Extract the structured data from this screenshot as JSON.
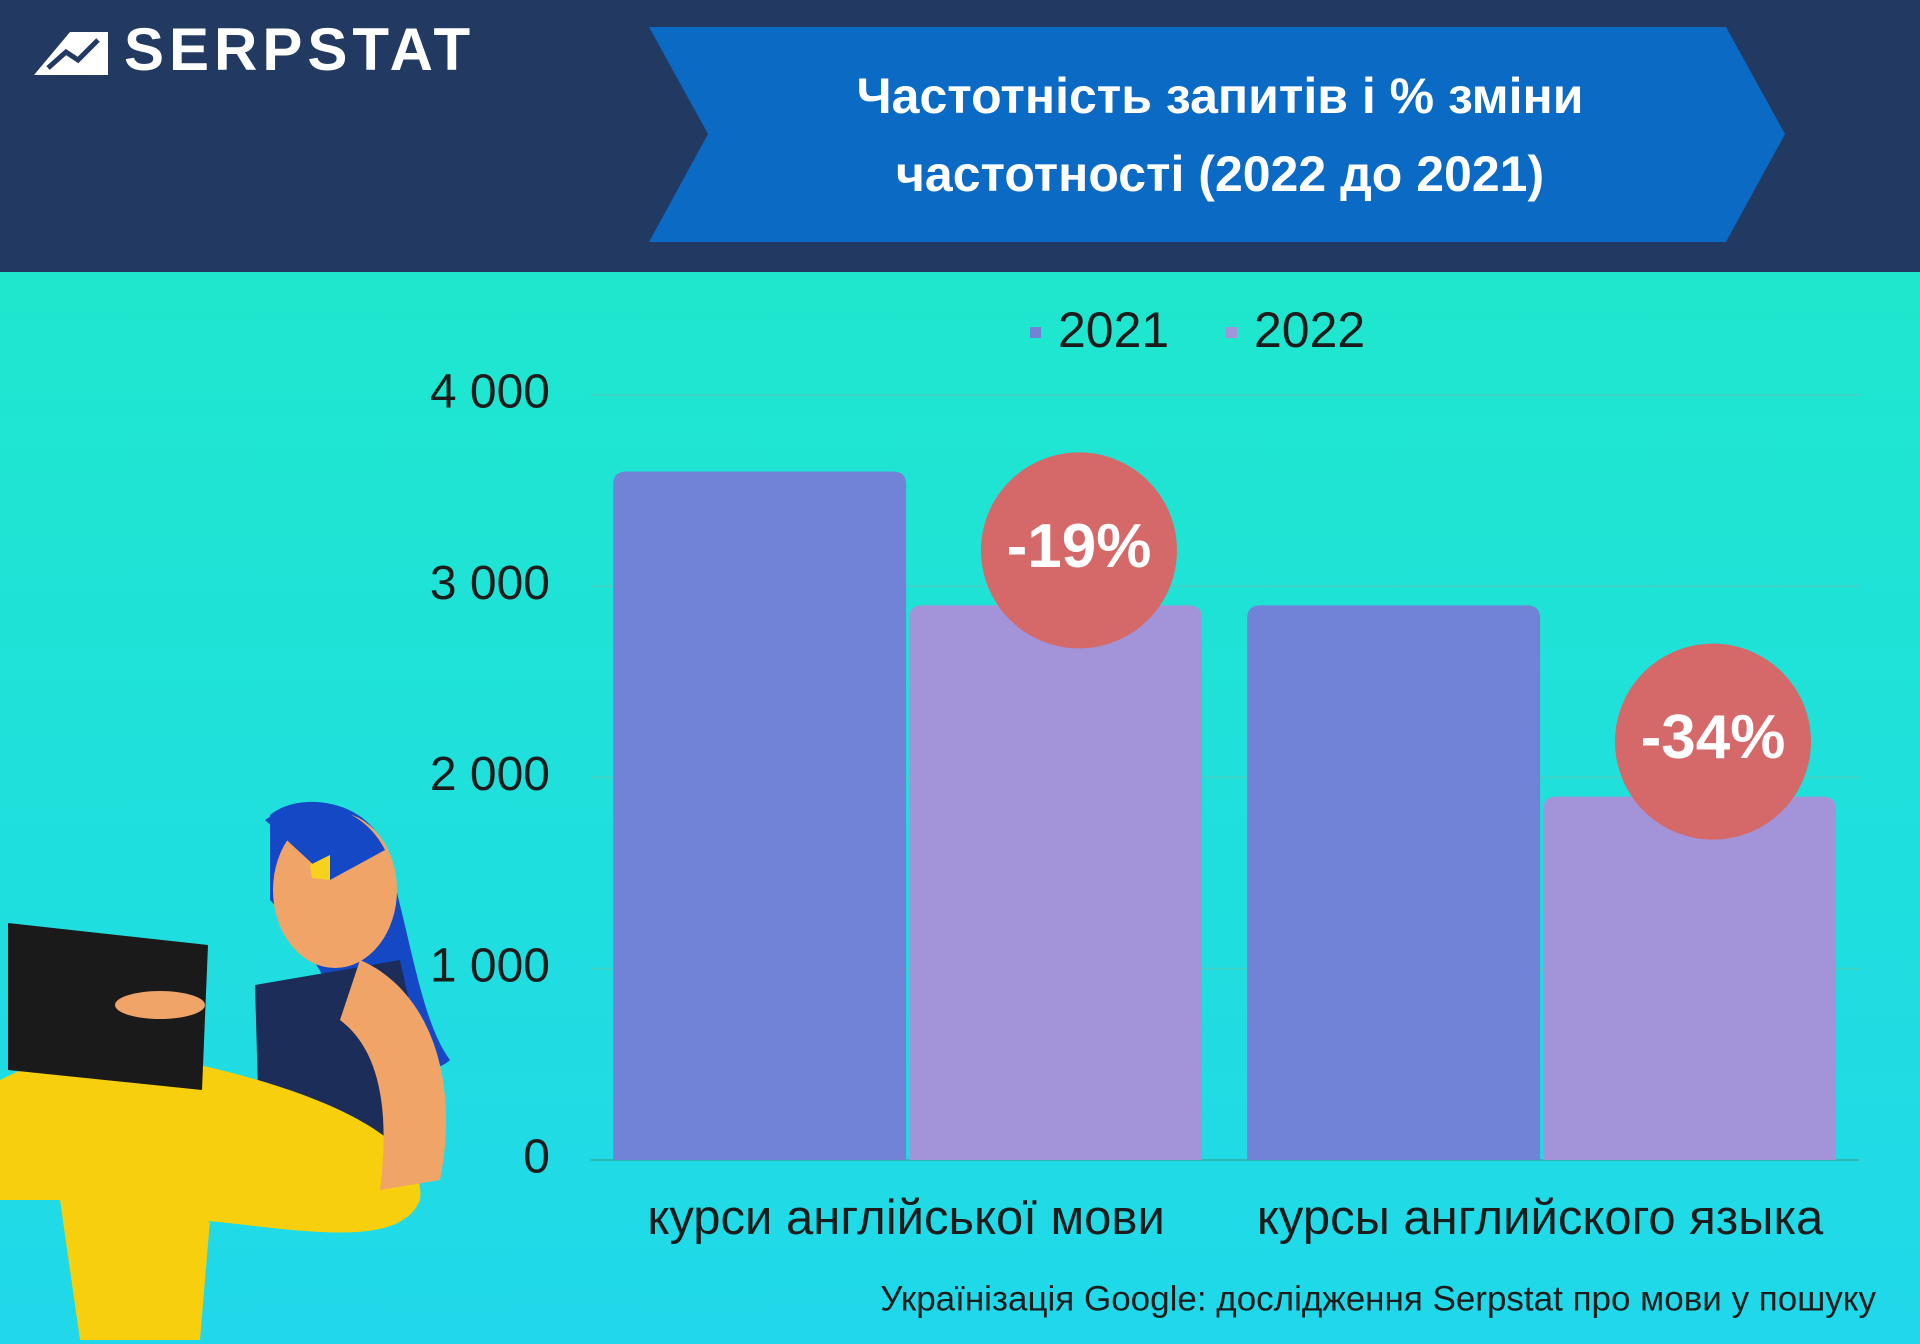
{
  "header": {
    "logo": "SERPSTAT",
    "title": "Частотність запитів і % зміни частотності (2022 до 2021)"
  },
  "chart_data": {
    "type": "bar",
    "categories": [
      "курси англійської мови",
      "курсы английского языка"
    ],
    "series": [
      {
        "name": "2021",
        "color": "#7083d6",
        "values": [
          3600,
          2900
        ]
      },
      {
        "name": "2022",
        "color": "#a394d9",
        "values": [
          2900,
          1900
        ]
      }
    ],
    "annotations": [
      "-19%",
      "-34%"
    ],
    "annotation_color": "#d56868",
    "ylim": [
      0,
      4000
    ],
    "yticks": [
      0,
      {
        "value": 1000,
        "label": "1 000"
      },
      {
        "value": 2000,
        "label": "2 000"
      },
      {
        "value": 3000,
        "label": "3 000"
      },
      {
        "value": 4000,
        "label": "4 000"
      }
    ],
    "grid": true,
    "legend": "top"
  },
  "footer": {
    "source": "Українізація Google: дослідження Serpstat про мови у пошуку"
  }
}
